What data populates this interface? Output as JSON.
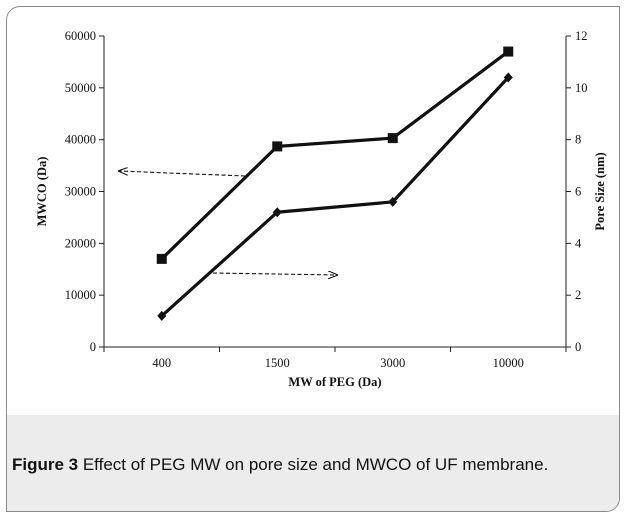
{
  "chart_data": {
    "type": "line",
    "categories": [
      "400",
      "1500",
      "3000",
      "10000"
    ],
    "xlabel": "MW of PEG (Da)",
    "ylabel_left": "MWCO (Da)",
    "ylabel_right": "Pore Size (nm)",
    "ylim_left": [
      0,
      60000
    ],
    "ylim_right": [
      0,
      12
    ],
    "yticks_left": [
      "0",
      "10000",
      "20000",
      "30000",
      "40000",
      "50000",
      "60000"
    ],
    "yticks_right": [
      "0",
      "2",
      "4",
      "6",
      "8",
      "10",
      "12"
    ],
    "grid": false,
    "legend": "none",
    "series": [
      {
        "axis": "left",
        "marker": "square",
        "values": [
          17000,
          38700,
          40300,
          57000
        ],
        "color": "#111111"
      },
      {
        "axis": "right",
        "marker": "diamond",
        "values": [
          1.2,
          5.2,
          5.6,
          10.4
        ],
        "color": "#111111"
      }
    ],
    "annotations": [
      {
        "kind": "dashed-arrow",
        "direction": "left",
        "points_to": "MWCO (Da)"
      },
      {
        "kind": "dashed-arrow",
        "direction": "right",
        "points_to": "Pore Size (nm)"
      }
    ]
  },
  "caption": {
    "label": "Figure 3",
    "text": " Effect of PEG MW on pore size and MWCO of UF membrane."
  }
}
